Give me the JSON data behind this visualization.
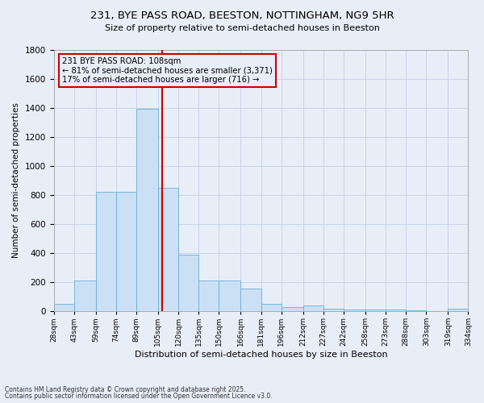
{
  "title1": "231, BYE PASS ROAD, BEESTON, NOTTINGHAM, NG9 5HR",
  "title2": "Size of property relative to semi-detached houses in Beeston",
  "xlabel": "Distribution of semi-detached houses by size in Beeston",
  "ylabel": "Number of semi-detached properties",
  "footnote1": "Contains HM Land Registry data © Crown copyright and database right 2025.",
  "footnote2": "Contains public sector information licensed under the Open Government Licence v3.0.",
  "annotation_title": "231 BYE PASS ROAD: 108sqm",
  "annotation_line1": "← 81% of semi-detached houses are smaller (3,371)",
  "annotation_line2": "17% of semi-detached houses are larger (716) →",
  "property_size": 108,
  "bar_color": "#cce0f5",
  "bar_edgecolor": "#6aafd6",
  "vline_color": "#cc0000",
  "annotation_box_color": "#cc0000",
  "grid_color": "#c8d4e8",
  "background_color": "#e8eef8",
  "bin_edges": [
    28,
    43,
    59,
    74,
    89,
    105,
    120,
    135,
    150,
    166,
    181,
    196,
    212,
    227,
    242,
    258,
    273,
    288,
    303,
    319,
    334
  ],
  "bin_labels": [
    "28sqm",
    "43sqm",
    "59sqm",
    "74sqm",
    "89sqm",
    "105sqm",
    "120sqm",
    "135sqm",
    "150sqm",
    "166sqm",
    "181sqm",
    "196sqm",
    "212sqm",
    "227sqm",
    "242sqm",
    "258sqm",
    "273sqm",
    "288sqm",
    "303sqm",
    "319sqm",
    "334sqm"
  ],
  "counts": [
    50,
    210,
    820,
    820,
    1390,
    850,
    390,
    210,
    210,
    155,
    50,
    30,
    40,
    20,
    10,
    10,
    10,
    5,
    0,
    20,
    0
  ],
  "ylim": [
    0,
    1800
  ],
  "yticks": [
    0,
    200,
    400,
    600,
    800,
    1000,
    1200,
    1400,
    1600,
    1800
  ]
}
